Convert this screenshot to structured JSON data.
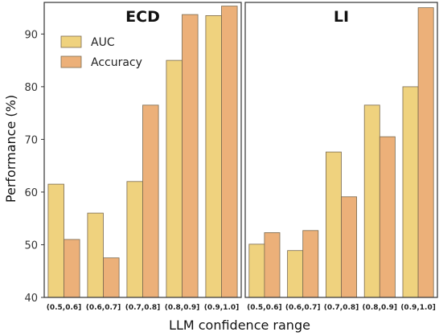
{
  "chart_data": {
    "type": "bar",
    "ylabel": "Performance (%)",
    "xlabel": "LLM confidence range",
    "ylim": [
      40,
      96
    ],
    "yticks": [
      40,
      50,
      60,
      70,
      80,
      90
    ],
    "categories": [
      "(0.5,0.6]",
      "(0.6,0.7]",
      "(0.7,0.8]",
      "(0.8,0.9]",
      "(0.9,1.0]"
    ],
    "legend": {
      "placement": "top-left",
      "entries": [
        "AUC",
        "Accuracy"
      ]
    },
    "colors": {
      "AUC": "#efd27e",
      "Accuracy": "#ecb079"
    },
    "grid": false,
    "panels": [
      {
        "title": "ECD",
        "series": [
          {
            "name": "AUC",
            "values": [
              61.5,
              56.0,
              62.0,
              85.0,
              93.5
            ]
          },
          {
            "name": "Accuracy",
            "values": [
              51.0,
              47.5,
              76.5,
              93.7,
              95.3
            ]
          }
        ]
      },
      {
        "title": "LI",
        "series": [
          {
            "name": "AUC",
            "values": [
              50.1,
              48.9,
              67.6,
              76.5,
              80.0
            ]
          },
          {
            "name": "Accuracy",
            "values": [
              52.3,
              52.7,
              59.1,
              70.5,
              95.0
            ]
          }
        ]
      }
    ]
  }
}
